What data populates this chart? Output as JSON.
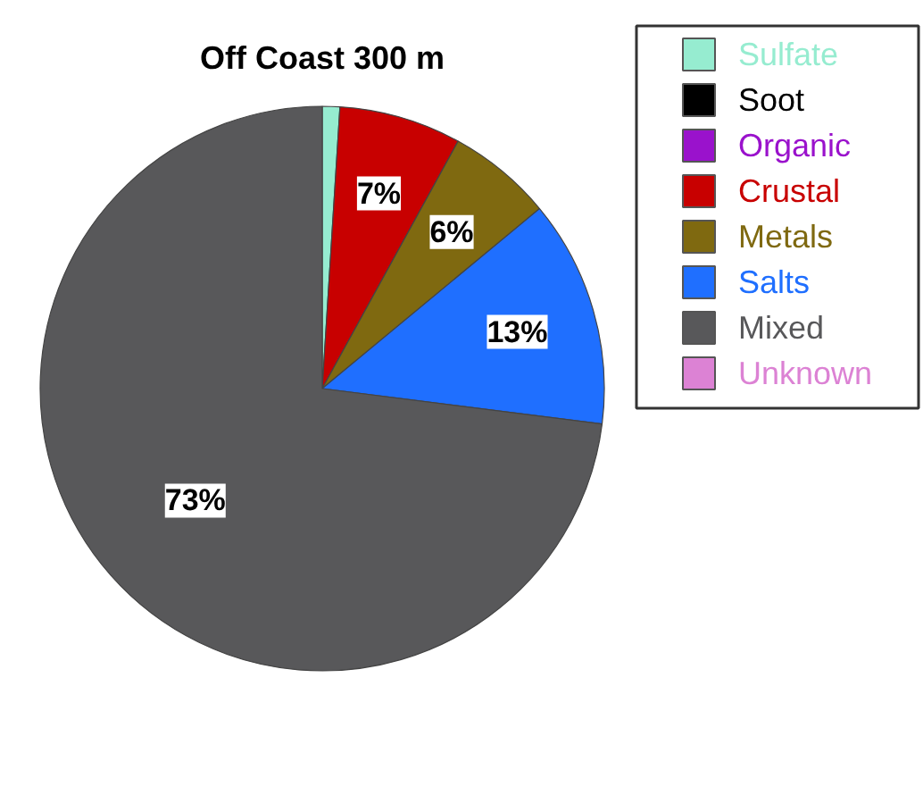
{
  "chart_data": {
    "type": "pie",
    "title": "Off Coast 300 m",
    "categories": [
      "Sulfate",
      "Soot",
      "Organic",
      "Crustal",
      "Metals",
      "Salts",
      "Mixed",
      "Unknown"
    ],
    "values": [
      1,
      0,
      0,
      7,
      6,
      13,
      73,
      0
    ],
    "colors": [
      "#96ecd0",
      "#000000",
      "#9a12cc",
      "#c80000",
      "#7f6910",
      "#1f6fff",
      "#58585a",
      "#dc82d4"
    ],
    "value_labels": [
      null,
      null,
      null,
      "7%",
      "6%",
      "13%",
      "73%",
      null
    ],
    "legend": "top right"
  }
}
